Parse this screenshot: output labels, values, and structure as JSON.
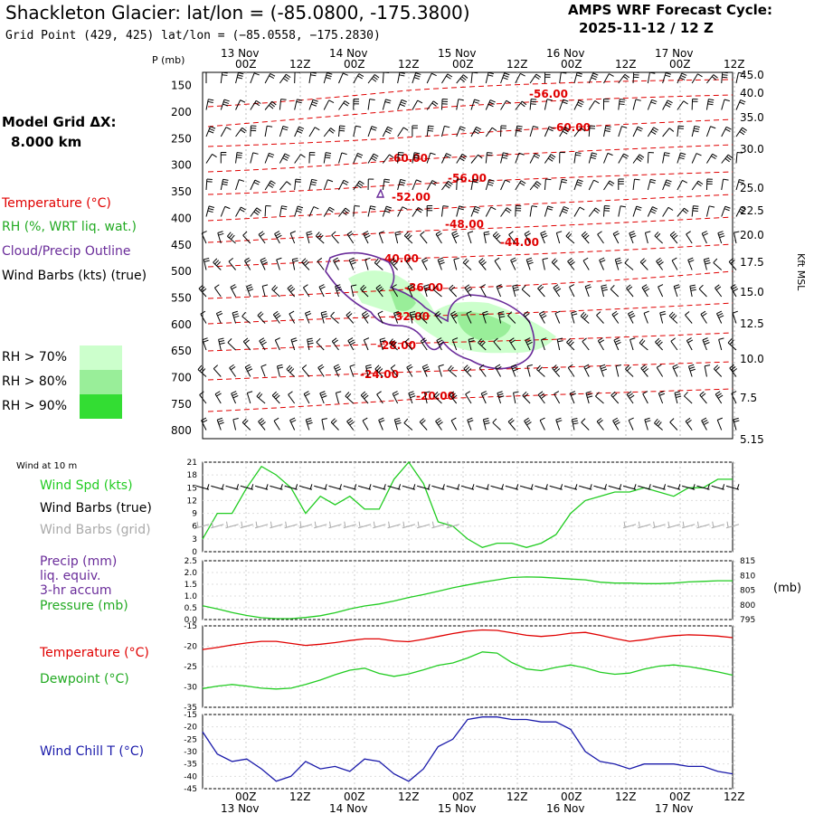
{
  "header": {
    "title": "Shackleton Glacier:  lat/lon = (-85.0800, -175.3800)",
    "subtitle": "Grid Point (429, 425) lat/lon = (−85.0558, −175.2830)",
    "cycle_line1": "AMPS WRF Forecast Cycle:",
    "cycle_line2": "2025-11-12 / 12  Z",
    "grid_line1": "Model Grid ΔX:",
    "grid_line2": "8.000 km"
  },
  "legend": {
    "temperature": "Temperature (°C)",
    "rh": "RH (%, WRT liq. wat.)",
    "cloud": "Cloud/Precip Outline",
    "wind": "Wind Barbs (kts) (true)",
    "rh70": "RH > 70%",
    "rh80": "RH > 80%",
    "rh90": "RH > 90%"
  },
  "colors": {
    "temp": "#e00000",
    "rh70": "#ccffcc",
    "rh80": "#99ee99",
    "rh90": "#33dd33",
    "cloud": "#6a2c9a",
    "spd": "#22cc22",
    "grid": "#aaaaaa",
    "chill": "#1a1aaa"
  },
  "time_axis": {
    "hour_labels": [
      "00Z",
      "12Z",
      "00Z",
      "12Z",
      "00Z",
      "12Z",
      "00Z",
      "12Z",
      "00Z",
      "12Z"
    ],
    "day_labels": [
      "13 Nov",
      "14 Nov",
      "15 Nov",
      "16 Nov",
      "17 Nov"
    ]
  },
  "chart_data": [
    {
      "type": "line",
      "panel": "profile",
      "ylabel_left": "P (mb)",
      "ylabel_right": "Kft MSL",
      "pressure_ticks": [
        150,
        200,
        250,
        300,
        350,
        400,
        450,
        500,
        550,
        600,
        650,
        700,
        750,
        800
      ],
      "height_ticks": [
        "45.0",
        "40.0",
        "35.0",
        "30.0",
        "25.0",
        "22.5",
        "20.0",
        "17.5",
        "15.0",
        "12.5",
        "10.0",
        "7.5",
        "5.15"
      ],
      "isotherm_labels": [
        "-56.00",
        "-60.00",
        "-60.00",
        "-56.00",
        "-52.00",
        "-48.00",
        "-44.00",
        "-40.00",
        "-36.00",
        "-32.00",
        "-28.00",
        "-24.00",
        "-20.00"
      ]
    },
    {
      "type": "line",
      "panel": "wind",
      "title": "Wind at 10 m",
      "labels": {
        "spd": "Wind Spd (kts)",
        "barb": "Wind Barbs (true)",
        "grid": "Wind Barbs (grid)"
      },
      "yticks": [
        "21",
        "18",
        "15",
        "12",
        "9",
        "6",
        "3",
        "0"
      ],
      "ylim": [
        0,
        21
      ],
      "series": [
        {
          "name": "Wind Spd (kts)",
          "values": [
            3,
            9,
            9,
            15,
            20,
            18,
            15,
            9,
            13,
            11,
            13,
            10,
            10,
            17,
            21,
            16,
            7,
            6,
            3,
            1,
            2,
            2,
            1,
            2,
            4,
            9,
            12,
            13,
            14,
            14,
            15,
            14,
            13,
            15,
            15,
            17,
            17
          ]
        }
      ]
    },
    {
      "type": "line",
      "panel": "precip_pressure",
      "labels": {
        "precip": "Precip (mm)",
        "liq": "liq. equiv.",
        "accum": "3-hr accum",
        "pressure": "Pressure (mb)"
      },
      "yticks_left": [
        "2.5",
        "2.0",
        "1.5",
        "1.0",
        "0.5",
        "0.0"
      ],
      "yticks_right": [
        "815",
        "810",
        "805",
        "800",
        "795"
      ],
      "unit_right": "(mb)",
      "ylim_right": [
        795,
        815
      ],
      "series": [
        {
          "name": "Pressure (mb)",
          "values": [
            799.7,
            798.6,
            797.4,
            796.4,
            795.6,
            795.3,
            795.3,
            795.7,
            796.3,
            797.3,
            798.6,
            799.6,
            800.3,
            801.3,
            802.5,
            803.5,
            804.6,
            805.8,
            806.8,
            807.7,
            808.5,
            809.3,
            809.5,
            809.4,
            809.1,
            808.8,
            808.5,
            807.7,
            807.4,
            807.4,
            807.2,
            807.2,
            807.4,
            807.8,
            808.0,
            808.2,
            808.2
          ]
        }
      ]
    },
    {
      "type": "line",
      "panel": "temperature",
      "labels": {
        "temp": "Temperature (°C)",
        "dew": "Dewpoint (°C)"
      },
      "yticks": [
        "-15",
        "-20",
        "-25",
        "-30",
        "-35"
      ],
      "ylim": [
        -35,
        -15
      ],
      "series": [
        {
          "name": "Temperature (°C)",
          "values": [
            -20.8,
            -20.3,
            -19.7,
            -19.2,
            -18.8,
            -18.8,
            -19.3,
            -19.8,
            -19.5,
            -19.1,
            -18.6,
            -18.2,
            -18.2,
            -18.7,
            -18.9,
            -18.3,
            -17.6,
            -16.9,
            -16.3,
            -16.0,
            -16.1,
            -16.7,
            -17.3,
            -17.6,
            -17.3,
            -16.8,
            -16.6,
            -17.3,
            -18.1,
            -18.8,
            -18.4,
            -17.8,
            -17.4,
            -17.2,
            -17.3,
            -17.5,
            -17.9
          ]
        },
        {
          "name": "Dewpoint (°C)",
          "values": [
            -30.4,
            -29.8,
            -29.4,
            -29.8,
            -30.3,
            -30.5,
            -30.3,
            -29.4,
            -28.3,
            -27.0,
            -25.9,
            -25.4,
            -26.7,
            -27.4,
            -26.8,
            -25.8,
            -24.7,
            -24.1,
            -22.9,
            -21.4,
            -21.7,
            -24.0,
            -25.6,
            -26.0,
            -25.2,
            -24.6,
            -25.3,
            -26.4,
            -26.9,
            -26.6,
            -25.6,
            -24.9,
            -24.6,
            -25.0,
            -25.6,
            -26.3,
            -27.1
          ]
        }
      ]
    },
    {
      "type": "line",
      "panel": "windchill",
      "labels": {
        "chill": "Wind Chill T (°C)"
      },
      "yticks": [
        "-15",
        "-20",
        "-25",
        "-30",
        "-35",
        "-40",
        "-45"
      ],
      "ylim": [
        -45,
        -15
      ],
      "series": [
        {
          "name": "Wind Chill T (°C)",
          "values": [
            -22,
            -31,
            -34,
            -33,
            -37,
            -42,
            -40,
            -34,
            -37,
            -36,
            -38,
            -33,
            -34,
            -39,
            -42,
            -37,
            -28,
            -25,
            -17,
            -16,
            -16,
            -17,
            -17,
            -18,
            -18,
            -21,
            -30,
            -34,
            -35,
            -37,
            -35,
            -35,
            -35,
            -36,
            -36,
            -38,
            -39
          ]
        }
      ]
    }
  ]
}
